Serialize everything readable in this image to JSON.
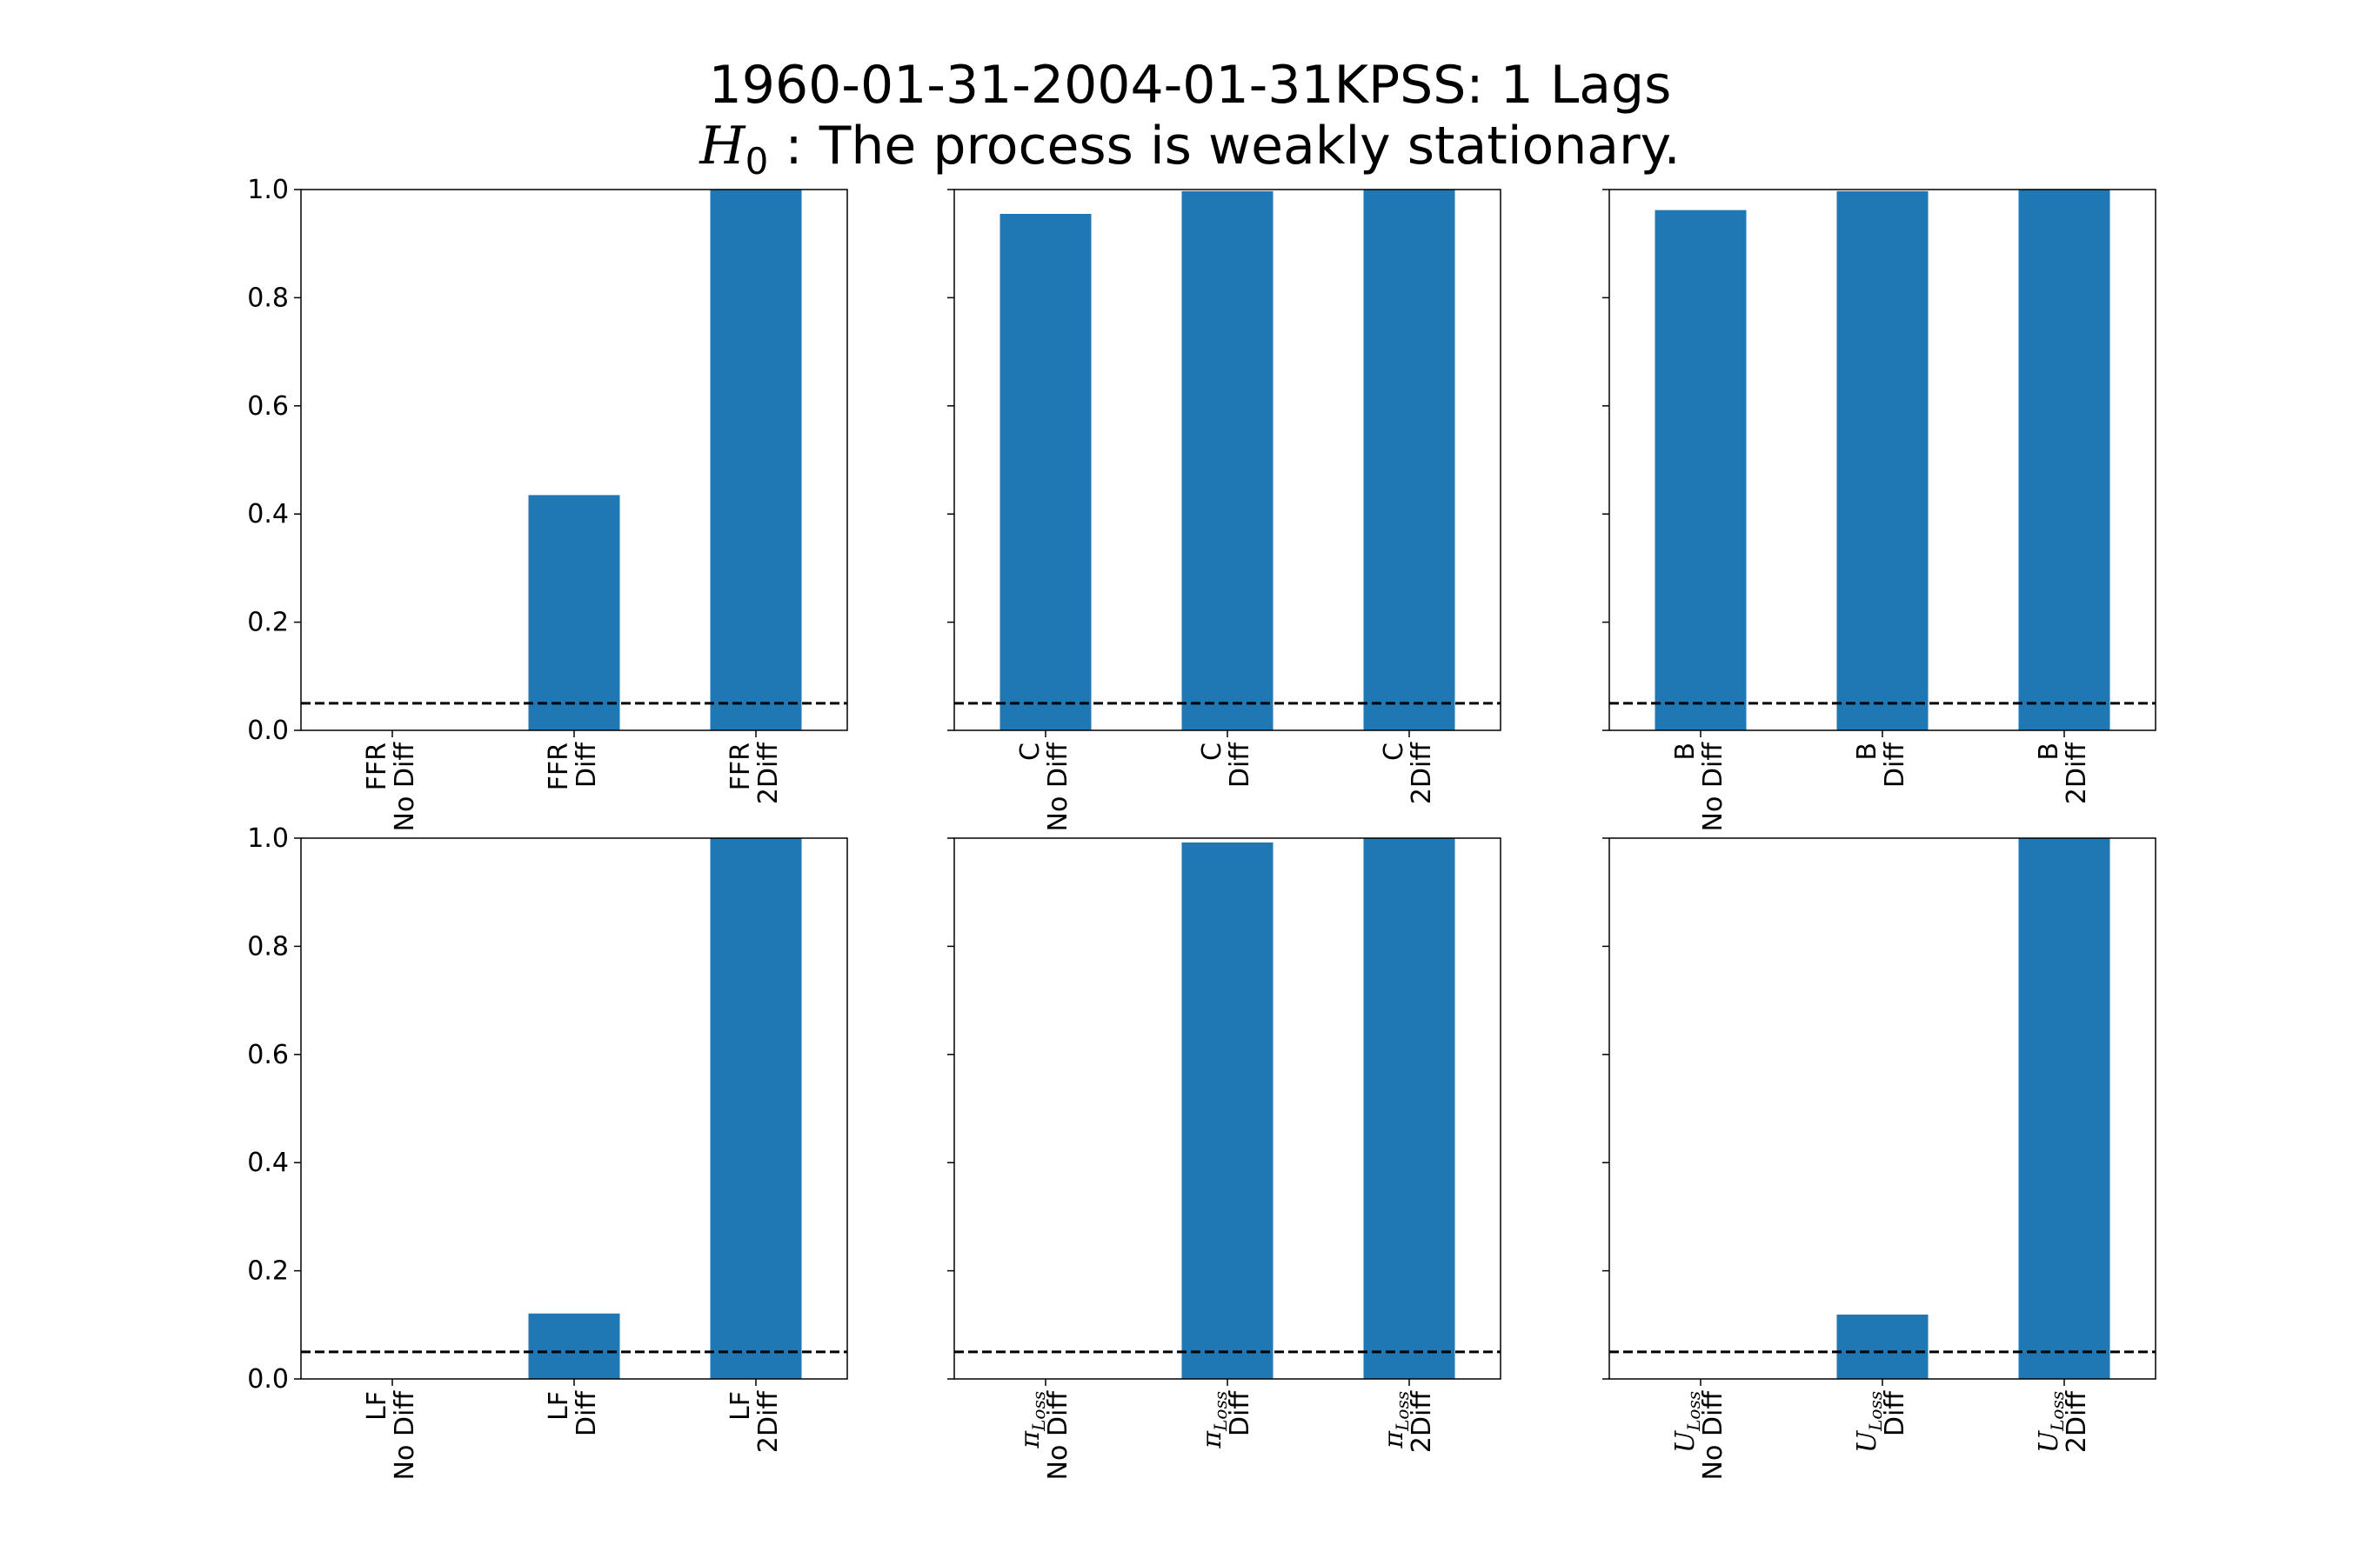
{
  "title": {
    "line1": "1960-01-31-2004-01-31KPSS: 1 Lags",
    "line2_symbol": "H",
    "line2_sub": "0",
    "line2_text": " :  The process is weakly stationary."
  },
  "colors": {
    "bar": "#1f77b4",
    "axis": "#000000",
    "threshold": "#000000",
    "background": "#ffffff"
  },
  "chart_data": [
    {
      "type": "bar",
      "variable": "FFR",
      "categories": [
        {
          "var": "FFR",
          "line2": "No Diff"
        },
        {
          "var": "FFR",
          "line2": "Diff"
        },
        {
          "var": "FFR",
          "line2": "2Diff"
        }
      ],
      "values": [
        0.0,
        0.435,
        1.0
      ],
      "ylim": [
        0,
        1.0
      ],
      "yticks": [
        "0.0",
        "0.2",
        "0.4",
        "0.6",
        "0.8",
        "1.0"
      ],
      "threshold": 0.05,
      "show_yticklabels": true
    },
    {
      "type": "bar",
      "variable": "C",
      "categories": [
        {
          "var": "C",
          "line2": "No Diff"
        },
        {
          "var": "C",
          "line2": "Diff"
        },
        {
          "var": "C",
          "line2": "2Diff"
        }
      ],
      "values": [
        0.955,
        0.997,
        1.0
      ],
      "ylim": [
        0,
        1.0
      ],
      "yticks": [
        "0.0",
        "0.2",
        "0.4",
        "0.6",
        "0.8",
        "1.0"
      ],
      "threshold": 0.05,
      "show_yticklabels": false
    },
    {
      "type": "bar",
      "variable": "B",
      "categories": [
        {
          "var": "B",
          "line2": "No Diff"
        },
        {
          "var": "B",
          "line2": "Diff"
        },
        {
          "var": "B",
          "line2": "2Diff"
        }
      ],
      "values": [
        0.962,
        0.997,
        1.0
      ],
      "ylim": [
        0,
        1.0
      ],
      "yticks": [
        "0.0",
        "0.2",
        "0.4",
        "0.6",
        "0.8",
        "1.0"
      ],
      "threshold": 0.05,
      "show_yticklabels": false
    },
    {
      "type": "bar",
      "variable": "LF",
      "categories": [
        {
          "var": "LF",
          "line2": "No Diff"
        },
        {
          "var": "LF",
          "line2": "Diff"
        },
        {
          "var": "LF",
          "line2": "2Diff"
        }
      ],
      "values": [
        0.0,
        0.121,
        1.0
      ],
      "ylim": [
        0,
        1.0
      ],
      "yticks": [
        "0.0",
        "0.2",
        "0.4",
        "0.6",
        "0.8",
        "1.0"
      ],
      "threshold": 0.05,
      "show_yticklabels": true
    },
    {
      "type": "bar",
      "variable": "π_Loss",
      "categories": [
        {
          "var": "π",
          "sub": "Loss",
          "line2": "No Diff"
        },
        {
          "var": "π",
          "sub": "Loss",
          "line2": "Diff"
        },
        {
          "var": "π",
          "sub": "Loss",
          "line2": "2Diff"
        }
      ],
      "values": [
        0.0,
        0.992,
        1.0
      ],
      "ylim": [
        0,
        1.0
      ],
      "yticks": [
        "0.0",
        "0.2",
        "0.4",
        "0.6",
        "0.8",
        "1.0"
      ],
      "threshold": 0.05,
      "show_yticklabels": false
    },
    {
      "type": "bar",
      "variable": "U_Loss",
      "categories": [
        {
          "var": "U",
          "sub": "Loss",
          "line2": "No Diff"
        },
        {
          "var": "U",
          "sub": "Loss",
          "line2": "Diff"
        },
        {
          "var": "U",
          "sub": "Loss",
          "line2": "2Diff"
        }
      ],
      "values": [
        0.0,
        0.119,
        1.0
      ],
      "ylim": [
        0,
        1.0
      ],
      "yticks": [
        "0.0",
        "0.2",
        "0.4",
        "0.6",
        "0.8",
        "1.0"
      ],
      "threshold": 0.05,
      "show_yticklabels": false
    }
  ]
}
